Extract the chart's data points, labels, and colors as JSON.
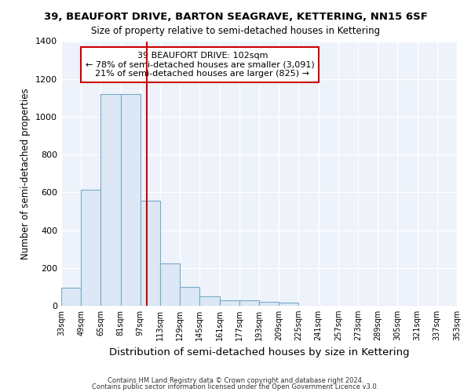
{
  "title_line1": "39, BEAUFORT DRIVE, BARTON SEAGRAVE, KETTERING, NN15 6SF",
  "title_line2": "Size of property relative to semi-detached houses in Kettering",
  "xlabel": "Distribution of semi-detached houses by size in Kettering",
  "ylabel": "Number of semi-detached properties",
  "bin_edges": [
    33,
    49,
    65,
    81,
    97,
    113,
    129,
    145,
    161,
    177,
    193,
    209,
    225,
    241,
    257,
    273,
    289,
    305,
    321,
    337,
    353
  ],
  "bar_values": [
    95,
    615,
    1120,
    1120,
    555,
    225,
    100,
    50,
    30,
    27,
    20,
    15,
    0,
    0,
    0,
    0,
    0,
    0,
    0,
    0
  ],
  "bar_color": "#dce8f5",
  "bar_edge_color": "#7aaac8",
  "property_size": 102,
  "property_label": "39 BEAUFORT DRIVE: 102sqm",
  "pct_smaller": 78,
  "pct_smaller_count": 3091,
  "pct_larger": 21,
  "pct_larger_count": 825,
  "vline_color": "#cc0000",
  "annotation_box_color": "#cc0000",
  "ylim": [
    0,
    1400
  ],
  "yticks": [
    0,
    200,
    400,
    600,
    800,
    1000,
    1200,
    1400
  ],
  "footnote1": "Contains HM Land Registry data © Crown copyright and database right 2024.",
  "footnote2": "Contains public sector information licensed under the Open Government Licence v3.0.",
  "background_color": "#edf2fb"
}
